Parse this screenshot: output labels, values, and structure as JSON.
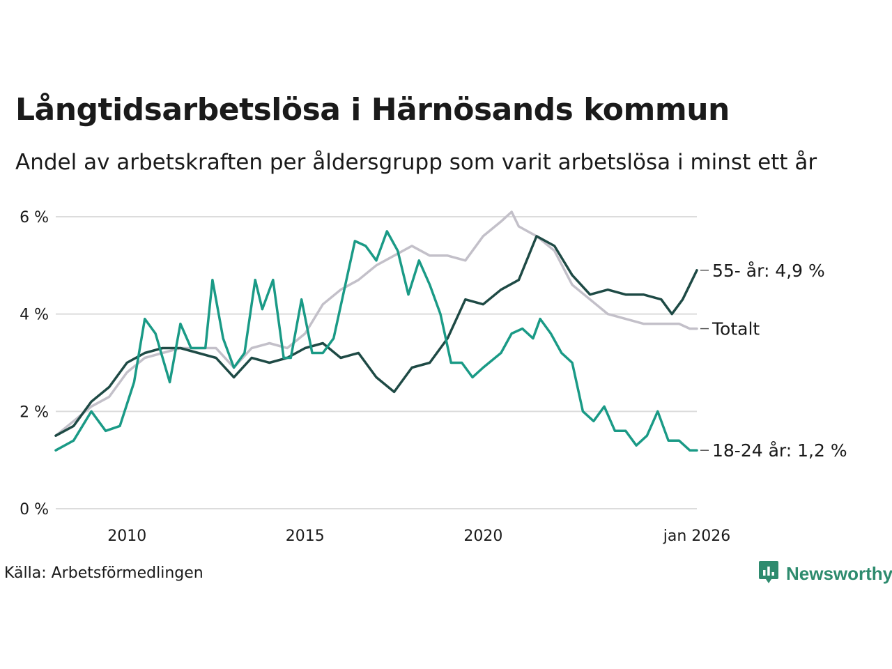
{
  "title": "Långtidsarbetslösa i Härnösands kommun",
  "subtitle": "Andel av arbetskraften per åldersgrupp som varit arbetslösa i minst ett år",
  "source": "Källa: Arbetsförmedlingen",
  "logo": {
    "text": "Newsworthy",
    "icon": "bar-chart-icon",
    "color": "#2e8b6e"
  },
  "chart_data": {
    "type": "line",
    "title": "Långtidsarbetslösa i Härnösands kommun",
    "ylabel": "",
    "xlabel": "",
    "ylim": [
      0,
      6.3
    ],
    "xlim": [
      2008.0,
      2026.0
    ],
    "yticks": [
      0,
      2,
      4,
      6
    ],
    "ytick_labels": [
      "0 %",
      "2 %",
      "4 %",
      "6 %"
    ],
    "xticks": [
      2010,
      2015,
      2020,
      2026.0
    ],
    "xtick_labels": [
      "2010",
      "2015",
      "2020",
      "jan 2026"
    ],
    "grid": true,
    "series": [
      {
        "name": "Totalt",
        "label": "Totalt",
        "color": "#c3c0c9",
        "x": [
          2008.0,
          2008.5,
          2009.0,
          2009.5,
          2010.0,
          2010.5,
          2011.0,
          2011.5,
          2012.0,
          2012.5,
          2013.0,
          2013.5,
          2014.0,
          2014.5,
          2015.0,
          2015.5,
          2016.0,
          2016.5,
          2017.0,
          2017.5,
          2018.0,
          2018.5,
          2019.0,
          2019.5,
          2020.0,
          2020.5,
          2020.8,
          2021.0,
          2021.5,
          2022.0,
          2022.5,
          2023.0,
          2023.5,
          2024.0,
          2024.5,
          2025.0,
          2025.5,
          2025.8,
          2026.0
        ],
        "y": [
          1.5,
          1.8,
          2.1,
          2.3,
          2.8,
          3.1,
          3.2,
          3.3,
          3.3,
          3.3,
          2.9,
          3.3,
          3.4,
          3.3,
          3.6,
          4.2,
          4.5,
          4.7,
          5.0,
          5.2,
          5.4,
          5.2,
          5.2,
          5.1,
          5.6,
          5.9,
          6.1,
          5.8,
          5.6,
          5.3,
          4.6,
          4.3,
          4.0,
          3.9,
          3.8,
          3.8,
          3.8,
          3.7,
          3.7
        ]
      },
      {
        "name": "55- år",
        "label": "55- år: 4,9 %",
        "color": "#1e4a45",
        "x": [
          2008.0,
          2008.5,
          2009.0,
          2009.5,
          2010.0,
          2010.5,
          2011.0,
          2011.5,
          2012.0,
          2012.5,
          2013.0,
          2013.5,
          2014.0,
          2014.5,
          2015.0,
          2015.5,
          2016.0,
          2016.5,
          2017.0,
          2017.5,
          2018.0,
          2018.5,
          2019.0,
          2019.5,
          2020.0,
          2020.5,
          2021.0,
          2021.5,
          2022.0,
          2022.5,
          2023.0,
          2023.5,
          2024.0,
          2024.5,
          2025.0,
          2025.3,
          2025.6,
          2026.0
        ],
        "y": [
          1.5,
          1.7,
          2.2,
          2.5,
          3.0,
          3.2,
          3.3,
          3.3,
          3.2,
          3.1,
          2.7,
          3.1,
          3.0,
          3.1,
          3.3,
          3.4,
          3.1,
          3.2,
          2.7,
          2.4,
          2.9,
          3.0,
          3.5,
          4.3,
          4.2,
          4.5,
          4.7,
          5.6,
          5.4,
          4.8,
          4.4,
          4.5,
          4.4,
          4.4,
          4.3,
          4.0,
          4.3,
          4.9
        ]
      },
      {
        "name": "18-24 år",
        "label": "18-24 år: 1,2 %",
        "color": "#1a9a86",
        "x": [
          2008.0,
          2008.5,
          2009.0,
          2009.4,
          2009.8,
          2010.2,
          2010.5,
          2010.8,
          2011.2,
          2011.5,
          2011.8,
          2012.2,
          2012.4,
          2012.7,
          2013.0,
          2013.3,
          2013.6,
          2013.8,
          2014.1,
          2014.4,
          2014.6,
          2014.9,
          2015.2,
          2015.5,
          2015.8,
          2016.1,
          2016.4,
          2016.7,
          2017.0,
          2017.3,
          2017.6,
          2017.9,
          2018.2,
          2018.5,
          2018.8,
          2019.1,
          2019.4,
          2019.7,
          2020.0,
          2020.5,
          2020.8,
          2021.1,
          2021.4,
          2021.6,
          2021.9,
          2022.2,
          2022.5,
          2022.8,
          2023.1,
          2023.4,
          2023.7,
          2024.0,
          2024.3,
          2024.6,
          2024.9,
          2025.2,
          2025.5,
          2025.8,
          2026.0
        ],
        "y": [
          1.2,
          1.4,
          2.0,
          1.6,
          1.7,
          2.6,
          3.9,
          3.6,
          2.6,
          3.8,
          3.3,
          3.3,
          4.7,
          3.5,
          2.9,
          3.2,
          4.7,
          4.1,
          4.7,
          3.1,
          3.1,
          4.3,
          3.2,
          3.2,
          3.5,
          4.5,
          5.5,
          5.4,
          5.1,
          5.7,
          5.3,
          4.4,
          5.1,
          4.6,
          4.0,
          3.0,
          3.0,
          2.7,
          2.9,
          3.2,
          3.6,
          3.7,
          3.5,
          3.9,
          3.6,
          3.2,
          3.0,
          2.0,
          1.8,
          2.1,
          1.6,
          1.6,
          1.3,
          1.5,
          2.0,
          1.4,
          1.4,
          1.2,
          1.2
        ]
      }
    ]
  }
}
